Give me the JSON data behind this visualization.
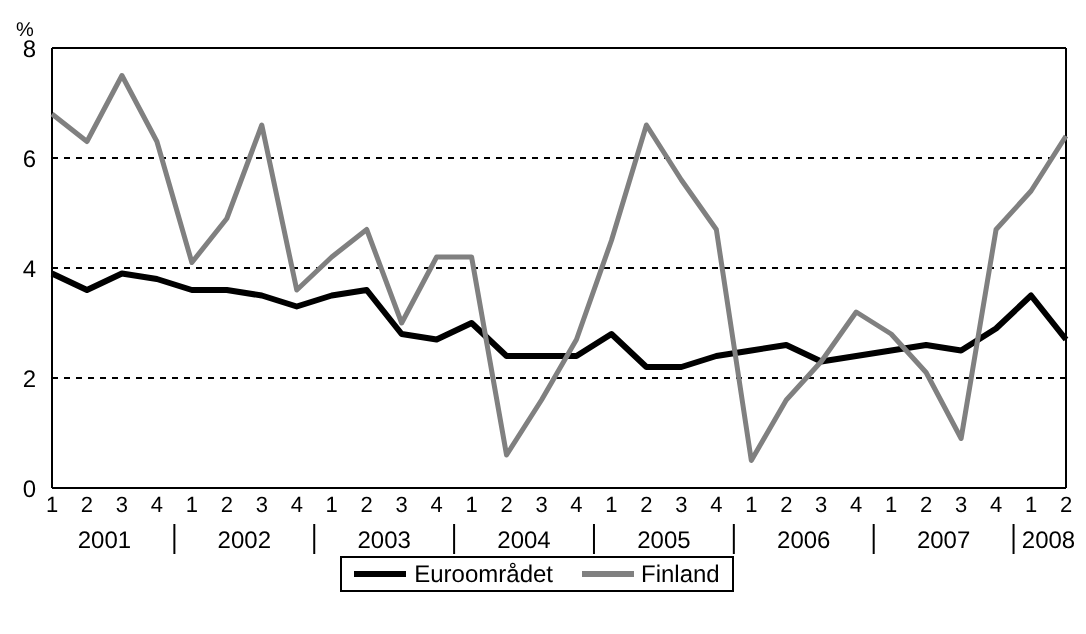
{
  "chart_data": {
    "type": "line",
    "ylabel": "%",
    "categories": [
      "1",
      "2",
      "3",
      "4",
      "1",
      "2",
      "3",
      "4",
      "1",
      "2",
      "3",
      "4",
      "1",
      "2",
      "3",
      "4",
      "1",
      "2",
      "3",
      "4",
      "1",
      "2",
      "3",
      "4",
      "1",
      "2",
      "3",
      "4",
      "1",
      "2"
    ],
    "annotations": [
      "2001",
      "2002",
      "2003",
      "2004",
      "2005",
      "2006",
      "2007",
      "2008"
    ],
    "series": [
      {
        "name": "Euroområdet",
        "color": "#000000",
        "values": [
          3.9,
          3.6,
          3.9,
          3.8,
          3.6,
          3.6,
          3.5,
          3.3,
          3.5,
          3.6,
          2.8,
          2.7,
          3.0,
          2.4,
          2.4,
          2.4,
          2.8,
          2.2,
          2.2,
          2.4,
          2.5,
          2.6,
          2.3,
          2.4,
          2.5,
          2.6,
          2.5,
          2.9,
          3.5,
          2.7
        ]
      },
      {
        "name": "Finland",
        "color": "#808080",
        "values": [
          6.8,
          6.3,
          7.5,
          6.3,
          4.1,
          4.9,
          6.6,
          3.6,
          4.2,
          4.7,
          3.0,
          4.2,
          4.2,
          0.6,
          1.6,
          2.7,
          4.5,
          6.6,
          5.6,
          4.7,
          0.5,
          1.6,
          2.3,
          3.2,
          2.8,
          2.1,
          0.9,
          4.7,
          5.4,
          6.4
        ]
      }
    ],
    "ylim": [
      0,
      8
    ],
    "yticks": [
      0,
      2,
      4,
      6,
      8
    ],
    "grid": "y",
    "legend": "bottom",
    "marker": "none",
    "line_style": "solid"
  }
}
